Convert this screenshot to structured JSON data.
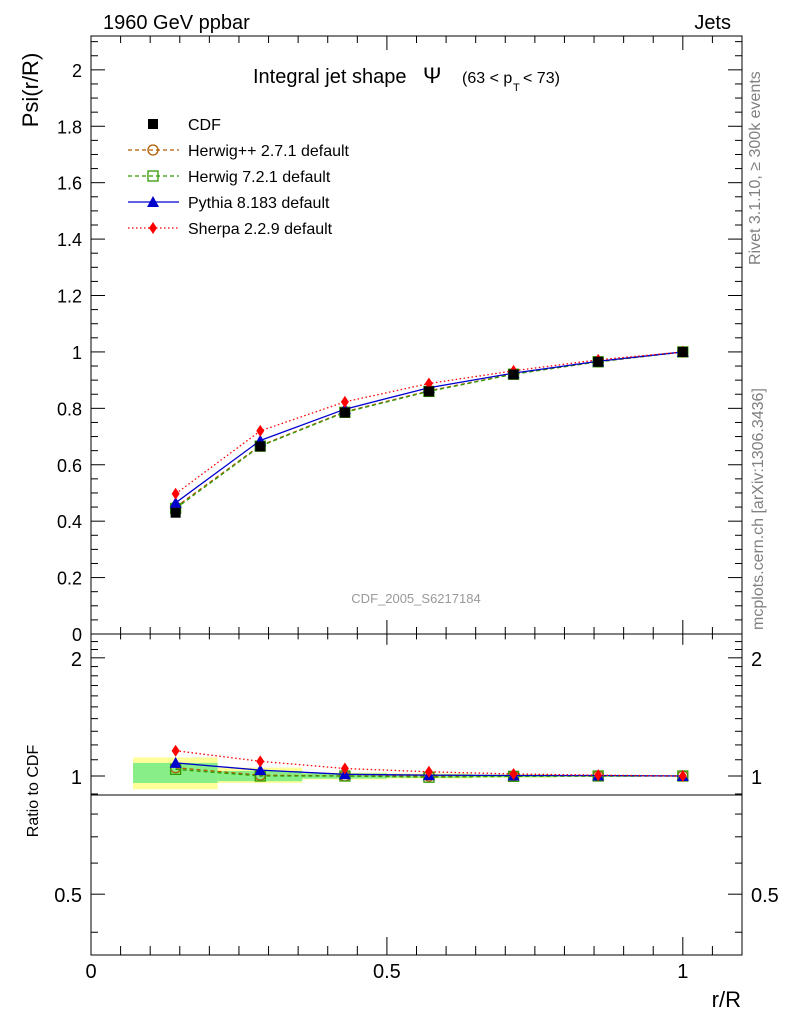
{
  "header": {
    "energy": "1960 GeV ppbar",
    "category": "Jets"
  },
  "side": {
    "rivet": "Rivet 3.1.10, ≥ 300k events",
    "mcplots": "mcplots.cern.ch [arXiv:1306.3436]"
  },
  "chart_data": [
    {
      "type": "line",
      "title": "Integral jet shape",
      "title_symbol": "Ψ",
      "title_range": {
        "open": "(63 < p",
        "sub": "T",
        "close": " < 73)"
      },
      "analysis_label": "CDF_2005_S6217184",
      "xlabel": "r/R",
      "ylabel": "Psi(r/R)",
      "xlim": [
        0,
        1.1
      ],
      "ylim": [
        0,
        2.12
      ],
      "yticks": [
        0,
        0.2,
        0.4,
        0.6,
        0.8,
        1,
        1.2,
        1.4,
        1.6,
        1.8,
        2
      ],
      "ytick_labels": [
        "0",
        "0.2",
        "0.4",
        "0.6",
        "0.8",
        "1",
        "1.2",
        "1.4",
        "1.6",
        "1.8",
        "2"
      ],
      "x": [
        0.143,
        0.286,
        0.429,
        0.571,
        0.714,
        0.857,
        1.0
      ],
      "data": {
        "name": "CDF",
        "values": [
          0.43,
          0.665,
          0.785,
          0.86,
          0.92,
          0.965,
          1.0
        ]
      },
      "series": [
        {
          "name": "Herwig++ 2.7.1 default",
          "color": "#b35900",
          "dash": "4,3",
          "marker": "circle-open",
          "values": [
            0.45,
            0.668,
            0.788,
            0.862,
            0.922,
            0.965,
            1.0
          ]
        },
        {
          "name": "Herwig 7.2.1 default",
          "color": "#339900",
          "dash": "4,3",
          "marker": "square-open",
          "values": [
            0.445,
            0.666,
            0.786,
            0.86,
            0.921,
            0.965,
            1.0
          ]
        },
        {
          "name": "Pythia 8.183 default",
          "color": "#0000cc",
          "dash": "",
          "marker": "triangle",
          "values": [
            0.465,
            0.686,
            0.797,
            0.873,
            0.925,
            0.967,
            1.0
          ]
        },
        {
          "name": "Sherpa 2.2.9 default",
          "color": "#ff0000",
          "dash": "1.5,2.5",
          "marker": "diamond",
          "values": [
            0.497,
            0.72,
            0.823,
            0.888,
            0.933,
            0.972,
            1.0
          ]
        }
      ]
    },
    {
      "type": "line",
      "ylabel": "Ratio to CDF",
      "xlabel": "r/R",
      "xlim": [
        0,
        1.1
      ],
      "ylim": [
        0.35,
        2.3
      ],
      "yscale": "log",
      "yticks": [
        0.5,
        1,
        2
      ],
      "ytick_labels": [
        "0.5",
        "1",
        "2"
      ],
      "xticks": [
        0,
        0.5,
        1
      ],
      "xtick_labels": [
        "0",
        "0.5",
        "1"
      ],
      "x": [
        0.143,
        0.286,
        0.429,
        0.571,
        0.714,
        0.857,
        1.0
      ],
      "bin_edges": [
        0.071,
        0.214,
        0.357,
        0.5,
        0.643,
        0.786,
        0.929,
        1.071
      ],
      "uncertainty_green": [
        [
          0.96,
          1.08
        ],
        [
          0.97,
          1.03
        ],
        [
          0.985,
          1.015
        ],
        [
          0.99,
          1.01
        ],
        [
          0.993,
          1.007
        ],
        [
          0.995,
          1.005
        ],
        [
          1.0,
          1.0
        ]
      ],
      "uncertainty_yellow": [
        [
          0.925,
          1.115
        ],
        [
          0.96,
          1.05
        ],
        [
          0.98,
          1.02
        ],
        [
          0.985,
          1.015
        ],
        [
          0.99,
          1.01
        ],
        [
          0.995,
          1.005
        ],
        [
          1.0,
          1.0
        ]
      ],
      "series": [
        {
          "name": "Herwig++ 2.7.1 default",
          "values": [
            1.05,
            1.005,
            1.0,
            1.0,
            1.0,
            1.0,
            1.0
          ]
        },
        {
          "name": "Herwig 7.2.1 default",
          "values": [
            1.04,
            1.0,
            1.0,
            0.993,
            0.998,
            1.0,
            1.0
          ]
        },
        {
          "name": "Pythia 8.183 default",
          "values": [
            1.08,
            1.035,
            1.01,
            1.005,
            1.003,
            1.003,
            1.0
          ]
        },
        {
          "name": "Sherpa 2.2.9 default",
          "values": [
            1.16,
            1.09,
            1.045,
            1.025,
            1.012,
            1.005,
            1.0
          ]
        }
      ]
    }
  ]
}
